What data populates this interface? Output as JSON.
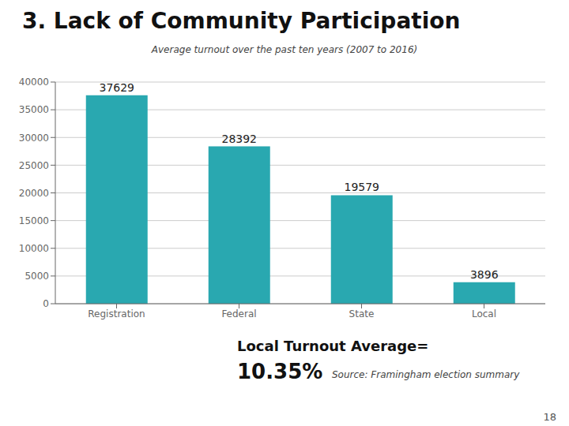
{
  "chart_data": {
    "type": "bar",
    "title": "3. Lack of Community Participation",
    "subtitle": "Average turnout over the past ten years (2007 to 2016)",
    "categories": [
      "Registration",
      "Federal",
      "State",
      "Local"
    ],
    "values": [
      37629,
      28392,
      19579,
      3896
    ],
    "color": "#29A8B0",
    "ylim": [
      0,
      40000
    ],
    "yticks": [
      0,
      5000,
      10000,
      15000,
      20000,
      25000,
      30000,
      35000,
      40000
    ],
    "grid": true,
    "data_labels": true,
    "annotations": [
      "Local Turnout Average=",
      "10.35%",
      "Source: Framingham election summary",
      "18"
    ]
  }
}
